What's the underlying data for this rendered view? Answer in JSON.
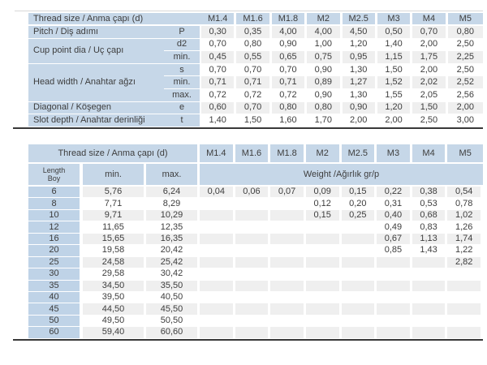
{
  "colors": {
    "header_blue": "#c6d7e8",
    "length_blue": "#bfd3e7",
    "stripe_gray": "#efefef",
    "rule_dark": "#383838",
    "rule_light": "#d8d8d8",
    "text": "#3d3d3d"
  },
  "sizes": [
    "M1.4",
    "M1.6",
    "M1.8",
    "M2",
    "M2.5",
    "M3",
    "M4",
    "M5"
  ],
  "spec_table": {
    "title": "Thread size / Anma çapı (d)",
    "row_groups": [
      {
        "label": "Pitch / Diş adımı",
        "rows": [
          {
            "sub": "P",
            "values": [
              "0,30",
              "0,35",
              "4,00",
              "4,00",
              "4,50",
              "0,50",
              "0,70",
              "0,80"
            ]
          }
        ]
      },
      {
        "label": "Cup point dia / Uç çapı",
        "rows": [
          {
            "sub": "d2",
            "values": [
              "0,70",
              "0,80",
              "0,90",
              "1,00",
              "1,20",
              "1,40",
              "2,00",
              "2,50"
            ]
          },
          {
            "sub": "min.",
            "values": [
              "0,45",
              "0,55",
              "0,65",
              "0,75",
              "0,95",
              "1,15",
              "1,75",
              "2,25"
            ]
          }
        ]
      },
      {
        "label": "Head width / Anahtar ağzı",
        "rows": [
          {
            "sub": "s",
            "values": [
              "0,70",
              "0,70",
              "0,70",
              "0,90",
              "1,30",
              "1,50",
              "2,00",
              "2,50"
            ]
          },
          {
            "sub": "min.",
            "values": [
              "0,71",
              "0,71",
              "0,71",
              "0,89",
              "1,27",
              "1,52",
              "2,02",
              "2,52"
            ]
          },
          {
            "sub": "max.",
            "values": [
              "0,72",
              "0,72",
              "0,72",
              "0,90",
              "1,30",
              "1,55",
              "2,05",
              "2,56"
            ]
          }
        ]
      },
      {
        "label": "Diagonal / Köşegen",
        "rows": [
          {
            "sub": "e",
            "values": [
              "0,60",
              "0,70",
              "0,80",
              "0,80",
              "0,90",
              "1,20",
              "1,50",
              "2,00"
            ]
          }
        ]
      },
      {
        "label": "Slot depth / Anahtar derinliği",
        "rows": [
          {
            "sub": "t",
            "values": [
              "1,40",
              "1,50",
              "1,60",
              "1,70",
              "2,00",
              "2,00",
              "2,50",
              "3,00"
            ]
          }
        ]
      }
    ]
  },
  "length_table": {
    "title": "Thread size / Anma çapı (d)",
    "length_label_en": "Length",
    "length_label_tr": "Boy",
    "min_header": "min.",
    "max_header": "max.",
    "weight_header": "Weight /Ağırlık gr/p",
    "rows": [
      {
        "length": "6",
        "min": "5,76",
        "max": "6,24",
        "weights": [
          "0,04",
          "0,06",
          "0,07",
          "0,09",
          "0,15",
          "0,22",
          "0,38",
          "0,54"
        ]
      },
      {
        "length": "8",
        "min": "7,71",
        "max": "8,29",
        "weights": [
          "",
          "",
          "",
          "0,12",
          "0,20",
          "0,31",
          "0,53",
          "0,78"
        ]
      },
      {
        "length": "10",
        "min": "9,71",
        "max": "10,29",
        "weights": [
          "",
          "",
          "",
          "0,15",
          "0,25",
          "0,40",
          "0,68",
          "1,02"
        ]
      },
      {
        "length": "12",
        "min": "11,65",
        "max": "12,35",
        "weights": [
          "",
          "",
          "",
          "",
          "",
          "0,49",
          "0,83",
          "1,26"
        ]
      },
      {
        "length": "16",
        "min": "15,65",
        "max": "16,35",
        "weights": [
          "",
          "",
          "",
          "",
          "",
          "0,67",
          "1,13",
          "1,74"
        ]
      },
      {
        "length": "20",
        "min": "19,58",
        "max": "20,42",
        "weights": [
          "",
          "",
          "",
          "",
          "",
          "0,85",
          "1,43",
          "1,22"
        ]
      },
      {
        "length": "25",
        "min": "24,58",
        "max": "25,42",
        "weights": [
          "",
          "",
          "",
          "",
          "",
          "",
          "",
          "2,82"
        ]
      },
      {
        "length": "30",
        "min": "29,58",
        "max": "30,42",
        "weights": [
          "",
          "",
          "",
          "",
          "",
          "",
          "",
          ""
        ]
      },
      {
        "length": "35",
        "min": "34,50",
        "max": "35,50",
        "weights": [
          "",
          "",
          "",
          "",
          "",
          "",
          "",
          ""
        ]
      },
      {
        "length": "40",
        "min": "39,50",
        "max": "40,50",
        "weights": [
          "",
          "",
          "",
          "",
          "",
          "",
          "",
          ""
        ]
      },
      {
        "length": "45",
        "min": "44,50",
        "max": "45,50",
        "weights": [
          "",
          "",
          "",
          "",
          "",
          "",
          "",
          ""
        ]
      },
      {
        "length": "50",
        "min": "49,50",
        "max": "50,50",
        "weights": [
          "",
          "",
          "",
          "",
          "",
          "",
          "",
          ""
        ]
      },
      {
        "length": "60",
        "min": "59,40",
        "max": "60,60",
        "weights": [
          "",
          "",
          "",
          "",
          "",
          "",
          "",
          ""
        ]
      }
    ]
  }
}
